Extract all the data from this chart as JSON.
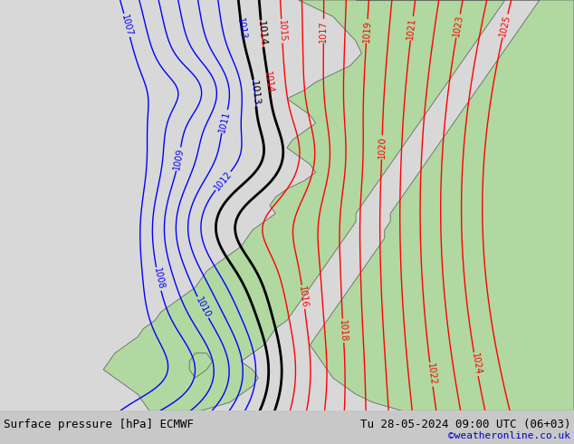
{
  "title_left": "Surface pressure [hPa] ECMWF",
  "title_right": "Tu 28-05-2024 09:00 UTC (06+03)",
  "credit": "©weatheronline.co.uk",
  "credit_color": "#0000cc",
  "fig_width": 6.34,
  "fig_height": 4.9,
  "dpi": 100,
  "sea_color": "#d8d8d8",
  "land_color": "#b0d8a0",
  "blue_contour_color": "#0000ff",
  "red_contour_color": "#ff0000",
  "black_contour_color": "#000000",
  "contour_linewidth": 1.0,
  "black_linewidth": 2.0
}
